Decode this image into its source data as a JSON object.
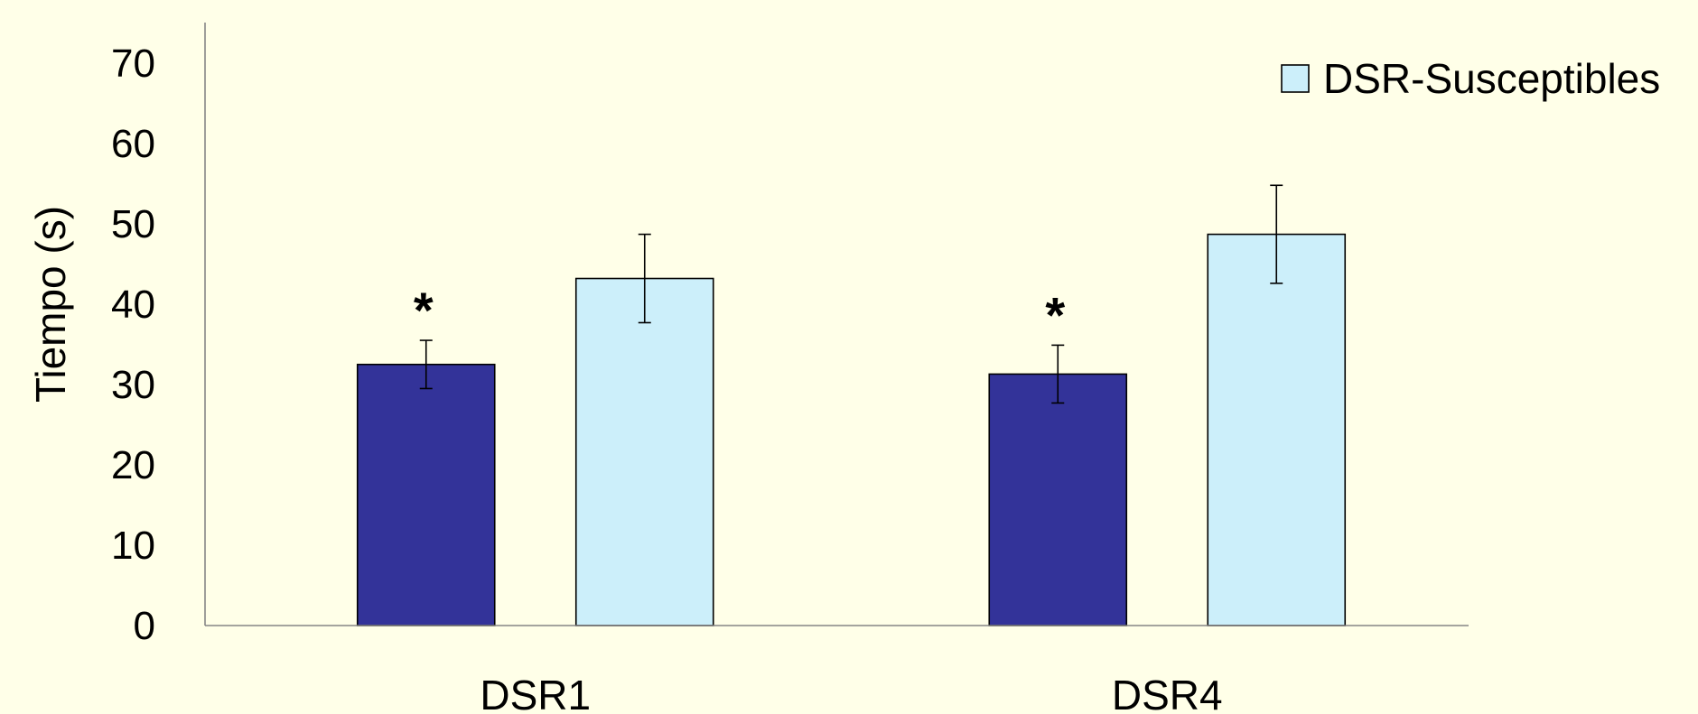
{
  "chart_data": {
    "type": "bar",
    "categories": [
      "DSR1",
      "DSR4"
    ],
    "ylabel": "Tiempo (s)",
    "xlabel": "",
    "ylim": [
      0,
      70
    ],
    "yticks": [
      0,
      10,
      20,
      30,
      40,
      50,
      60,
      70
    ],
    "grid": false,
    "legend_position": "top-right",
    "series": [
      {
        "color": "#333399",
        "values": [
          32.5,
          31.3
        ],
        "errors": [
          3.0,
          3.6
        ],
        "annotations": [
          "*",
          "*"
        ]
      },
      {
        "name": "DSR-Susceptibles",
        "color": "#CCEFFA",
        "values": [
          43.2,
          48.7
        ],
        "errors": [
          5.5,
          6.1
        ],
        "annotations": [
          "",
          ""
        ]
      }
    ]
  }
}
